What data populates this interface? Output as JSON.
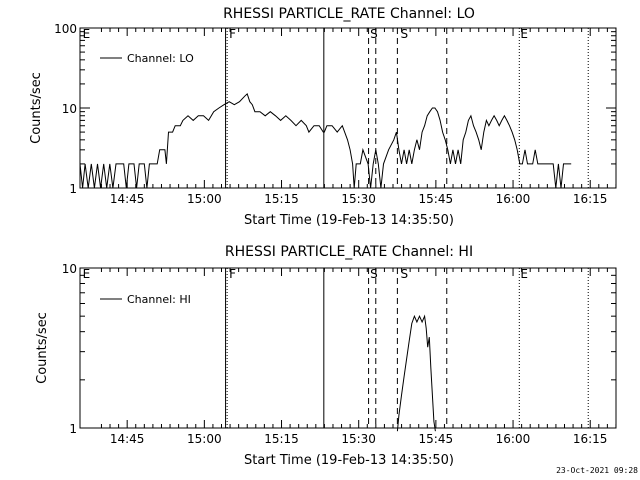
{
  "footer": {
    "timestamp": "23-Oct-2021 09:28"
  },
  "chart_data": [
    {
      "type": "line",
      "title": "RHESSI PARTICLE_RATE Channel: LO",
      "xlabel": "Start Time (19-Feb-13 14:35:50)",
      "ylabel": "Counts/sec",
      "yscale": "log",
      "ylim": [
        1,
        100
      ],
      "xlim_min": [
        0,
        104.2
      ],
      "xticks_min": [
        9.17,
        24.17,
        39.17,
        54.17,
        69.17,
        84.17,
        99.17
      ],
      "xtick_labels": [
        "14:45",
        "15:00",
        "15:15",
        "15:30",
        "15:45",
        "16:00",
        "16:15"
      ],
      "yticks": [
        1,
        10,
        100
      ],
      "ytick_labels": [
        "1",
        "10",
        "100"
      ],
      "legend": "Channel: LO",
      "legend_position": "top-left",
      "series": [
        {
          "name": "Channel: LO",
          "points": [
            [
              0,
              2
            ],
            [
              0.5,
              1
            ],
            [
              1,
              2
            ],
            [
              1.6,
              1
            ],
            [
              2.2,
              2
            ],
            [
              2.8,
              1
            ],
            [
              3.4,
              2
            ],
            [
              4,
              1
            ],
            [
              4.6,
              2
            ],
            [
              5.2,
              1
            ],
            [
              5.8,
              2
            ],
            [
              6.4,
              1
            ],
            [
              7,
              2
            ],
            [
              8.5,
              2
            ],
            [
              9,
              1
            ],
            [
              9.5,
              2
            ],
            [
              10.5,
              2
            ],
            [
              11,
              1
            ],
            [
              11.5,
              2
            ],
            [
              12.5,
              2
            ],
            [
              13,
              1
            ],
            [
              13.5,
              2
            ],
            [
              14.5,
              2
            ],
            [
              15,
              2
            ],
            [
              15.5,
              3
            ],
            [
              16.5,
              3
            ],
            [
              16.8,
              2
            ],
            [
              17.2,
              5
            ],
            [
              18,
              5
            ],
            [
              18.5,
              6
            ],
            [
              19.5,
              6
            ],
            [
              20,
              7
            ],
            [
              21,
              8
            ],
            [
              22,
              7
            ],
            [
              23,
              8
            ],
            [
              24,
              8
            ],
            [
              25,
              7
            ],
            [
              26,
              9
            ],
            [
              27,
              10
            ],
            [
              28,
              11
            ],
            [
              29,
              12
            ],
            [
              30,
              11
            ],
            [
              31,
              12
            ],
            [
              32,
              14
            ],
            [
              32.5,
              15
            ],
            [
              33,
              12
            ],
            [
              33.5,
              11
            ],
            [
              34,
              9
            ],
            [
              35,
              9
            ],
            [
              36,
              8
            ],
            [
              37,
              9
            ],
            [
              38,
              8
            ],
            [
              39,
              7
            ],
            [
              40,
              8
            ],
            [
              41,
              7
            ],
            [
              42,
              6
            ],
            [
              43,
              7
            ],
            [
              44,
              6
            ],
            [
              44.5,
              5
            ],
            [
              45.5,
              6
            ],
            [
              46.5,
              6
            ],
            [
              47.3,
              5
            ],
            [
              47.5,
              5
            ],
            [
              48,
              6
            ],
            [
              49,
              6
            ],
            [
              50,
              5
            ],
            [
              51,
              6
            ],
            [
              52,
              4
            ],
            [
              52.5,
              3
            ],
            [
              53,
              2
            ],
            [
              53.3,
              1
            ],
            [
              53.7,
              2
            ],
            [
              54.5,
              2
            ],
            [
              55,
              3
            ],
            [
              56,
              2
            ],
            [
              56.5,
              1
            ],
            [
              57,
              2
            ],
            [
              57.5,
              3
            ],
            [
              58,
              2
            ],
            [
              58.5,
              1
            ],
            [
              59,
              2
            ],
            [
              60,
              3
            ],
            [
              61,
              4
            ],
            [
              61.5,
              5
            ],
            [
              62,
              3
            ],
            [
              62.5,
              2
            ],
            [
              63,
              3
            ],
            [
              63.5,
              2
            ],
            [
              64,
              3
            ],
            [
              64.5,
              2
            ],
            [
              65,
              3
            ],
            [
              65.5,
              4
            ],
            [
              66,
              3
            ],
            [
              66.5,
              5
            ],
            [
              67,
              6
            ],
            [
              67.5,
              8
            ],
            [
              68,
              9
            ],
            [
              68.5,
              10
            ],
            [
              69,
              10
            ],
            [
              69.5,
              9
            ],
            [
              70,
              7
            ],
            [
              70.5,
              5
            ],
            [
              71,
              4
            ],
            [
              71.5,
              3
            ],
            [
              72,
              2
            ],
            [
              72.5,
              3
            ],
            [
              73,
              2
            ],
            [
              73.5,
              3
            ],
            [
              74,
              2
            ],
            [
              74.5,
              4
            ],
            [
              75,
              5
            ],
            [
              75.5,
              7
            ],
            [
              76,
              8
            ],
            [
              76.5,
              6
            ],
            [
              77,
              5
            ],
            [
              77.5,
              4
            ],
            [
              78,
              3
            ],
            [
              78.5,
              5
            ],
            [
              79,
              7
            ],
            [
              79.5,
              6
            ],
            [
              80,
              7
            ],
            [
              80.5,
              8
            ],
            [
              81,
              7
            ],
            [
              81.5,
              6
            ],
            [
              82,
              7
            ],
            [
              82.5,
              8
            ],
            [
              83,
              7
            ],
            [
              83.5,
              6
            ],
            [
              84,
              5
            ],
            [
              84.5,
              4
            ],
            [
              85,
              3
            ],
            [
              85.5,
              2
            ],
            [
              86,
              2
            ],
            [
              86.5,
              3
            ],
            [
              87,
              2
            ],
            [
              87.5,
              2
            ],
            [
              88,
              2
            ],
            [
              88.5,
              3
            ],
            [
              89,
              2
            ],
            [
              90,
              2
            ],
            [
              91,
              2
            ],
            [
              92,
              2
            ],
            [
              92.5,
              1
            ],
            [
              93,
              2
            ],
            [
              93.5,
              1
            ],
            [
              94,
              2
            ],
            [
              95.5,
              2
            ]
          ]
        }
      ],
      "markers": {
        "solid": [
          28.3,
          47.4
        ],
        "dashed": [
          56.1,
          57.5,
          61.7,
          71.3
        ],
        "dotted": [
          28.6,
          85.4,
          98.8
        ],
        "letters": [
          {
            "text": "E",
            "x_min": 0.5
          },
          {
            "text": "F",
            "x_min": 29.0
          },
          {
            "text": "S",
            "x_min": 56.4
          },
          {
            "text": "S",
            "x_min": 62.3
          },
          {
            "text": "E",
            "x_min": 85.6
          }
        ]
      }
    },
    {
      "type": "line",
      "title": "RHESSI PARTICLE_RATE Channel: HI",
      "xlabel": "Start Time (19-Feb-13 14:35:50)",
      "ylabel": "Counts/sec",
      "yscale": "log",
      "ylim": [
        1,
        10
      ],
      "xlim_min": [
        0,
        104.2
      ],
      "xticks_min": [
        9.17,
        24.17,
        39.17,
        54.17,
        69.17,
        84.17,
        99.17
      ],
      "xtick_labels": [
        "14:45",
        "15:00",
        "15:15",
        "15:30",
        "15:45",
        "16:00",
        "16:15"
      ],
      "yticks": [
        1,
        10
      ],
      "ytick_labels": [
        "1",
        "10"
      ],
      "legend": "Channel: HI",
      "legend_position": "top-left",
      "series": [
        {
          "name": "Channel: HI",
          "points": [
            [
              61.7,
              0.95
            ],
            [
              62,
              1.2
            ],
            [
              62.5,
              1.6
            ],
            [
              63,
              2.1
            ],
            [
              63.5,
              2.7
            ],
            [
              64,
              3.5
            ],
            [
              64.5,
              4.5
            ],
            [
              65,
              5
            ],
            [
              65.5,
              4.6
            ],
            [
              66,
              5
            ],
            [
              66.5,
              4.6
            ],
            [
              67,
              5
            ],
            [
              67.3,
              4.2
            ],
            [
              67.6,
              3.2
            ],
            [
              67.9,
              3.7
            ],
            [
              68.2,
              2.4
            ],
            [
              68.5,
              1.6
            ],
            [
              68.8,
              1.1
            ],
            [
              69.1,
              0.95
            ]
          ]
        }
      ],
      "markers": {
        "solid": [
          28.3,
          47.4
        ],
        "dashed": [
          56.1,
          57.5,
          61.7,
          71.3
        ],
        "dotted": [
          28.6,
          85.4,
          98.8
        ],
        "letters": [
          {
            "text": "E",
            "x_min": 0.5
          },
          {
            "text": "F",
            "x_min": 29.0
          },
          {
            "text": "S",
            "x_min": 56.4
          },
          {
            "text": "S",
            "x_min": 62.3
          },
          {
            "text": "E",
            "x_min": 85.6
          }
        ]
      }
    }
  ]
}
